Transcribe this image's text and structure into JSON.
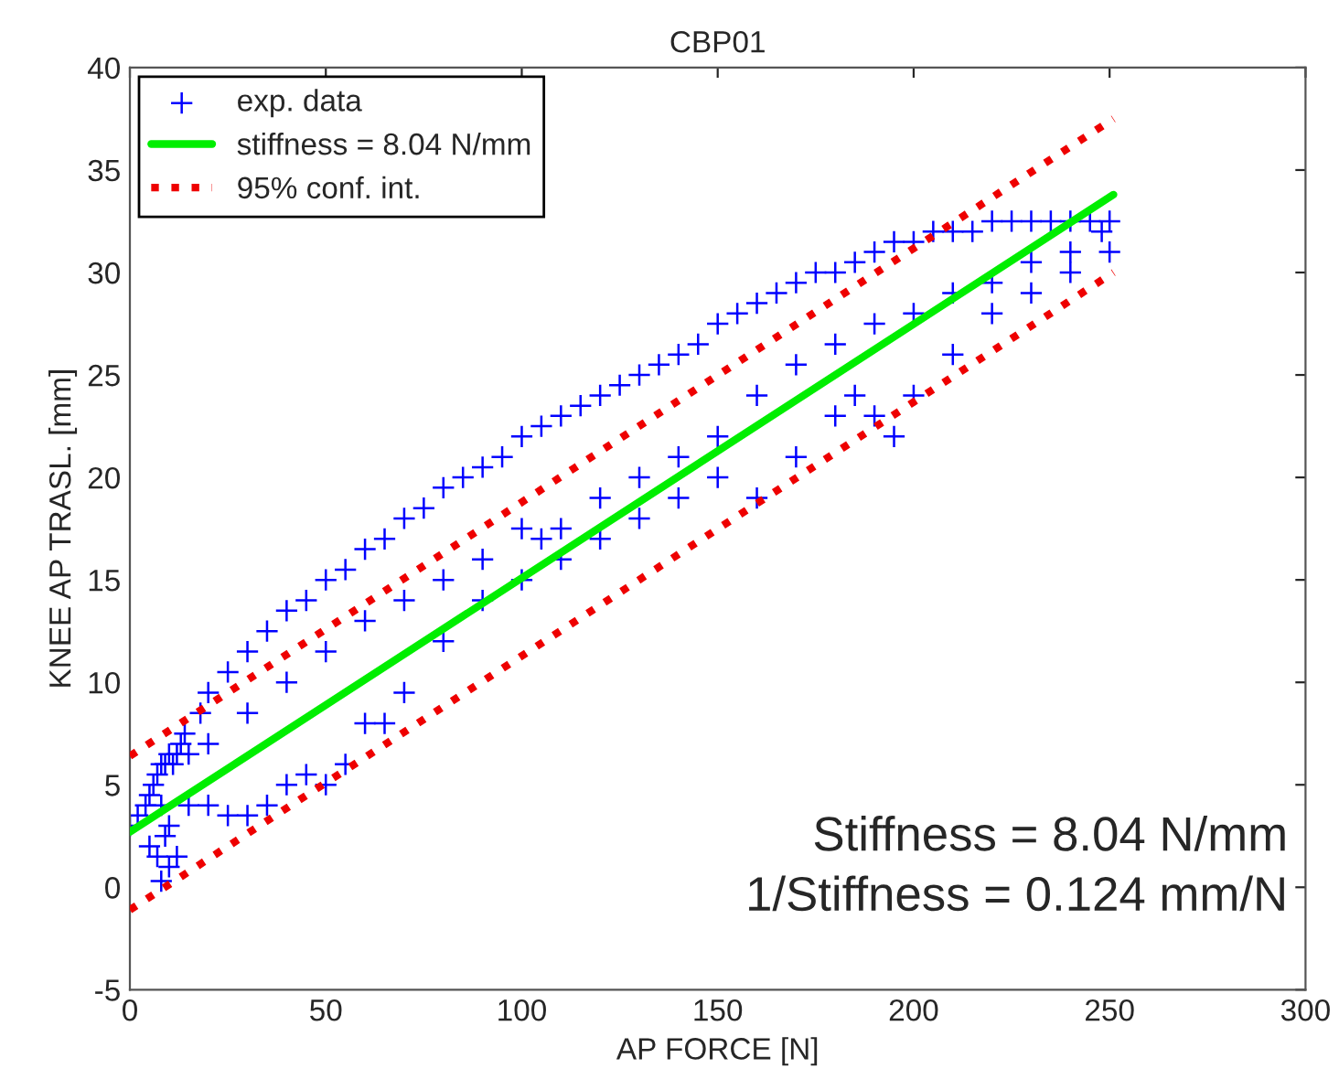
{
  "chart_data": {
    "type": "scatter",
    "title": "CBP01",
    "xlabel": "AP FORCE [N]",
    "ylabel": "KNEE AP TRASL. [mm]",
    "xlim": [
      0,
      300
    ],
    "xticks": [
      0,
      50,
      100,
      150,
      200,
      250,
      300
    ],
    "ylim": [
      -5,
      40
    ],
    "yticks": [
      -5,
      0,
      5,
      10,
      15,
      20,
      25,
      30,
      35,
      40
    ],
    "grid": false,
    "legend": "top left",
    "series": [
      {
        "name": "exp. data",
        "marker": "cross",
        "color": "#0000ff",
        "x": [
          0,
          2,
          4,
          5,
          6,
          7,
          8,
          9,
          10,
          11,
          12,
          13,
          15,
          5,
          7,
          8,
          9,
          10,
          12,
          8,
          10,
          14,
          18,
          20,
          25,
          30,
          35,
          40,
          45,
          50,
          55,
          60,
          65,
          70,
          75,
          80,
          85,
          90,
          95,
          100,
          105,
          110,
          115,
          120,
          125,
          130,
          135,
          140,
          145,
          150,
          155,
          160,
          165,
          170,
          175,
          180,
          185,
          190,
          195,
          200,
          205,
          210,
          215,
          220,
          225,
          230,
          235,
          240,
          245,
          250,
          20,
          30,
          40,
          50,
          60,
          70,
          80,
          90,
          100,
          105,
          110,
          120,
          130,
          140,
          150,
          160,
          170,
          180,
          190,
          200,
          210,
          220,
          230,
          240,
          248,
          15,
          20,
          25,
          30,
          35,
          40,
          45,
          50,
          55,
          60,
          65,
          70,
          80,
          90,
          100,
          110,
          120,
          130,
          140,
          150,
          160,
          170,
          180,
          185,
          190,
          195,
          200,
          210,
          220,
          230,
          240,
          250
        ],
        "values": [
          3,
          3.5,
          4,
          4.5,
          5,
          5.5,
          6,
          6,
          6.5,
          6,
          6.5,
          7,
          6.5,
          2,
          1.5,
          0.3,
          2.5,
          1,
          1.5,
          4,
          3,
          7.5,
          8.5,
          9.5,
          10.5,
          11.5,
          12.5,
          13.5,
          14,
          15,
          15.5,
          16.5,
          17,
          18,
          18.5,
          19.5,
          20,
          20.5,
          21,
          22,
          22.5,
          23,
          23.5,
          24,
          24.5,
          25,
          25.5,
          26,
          26.5,
          27.5,
          28,
          28.5,
          29,
          29.5,
          30,
          30,
          30.5,
          31,
          31.5,
          31.5,
          32,
          32,
          32,
          32.5,
          32.5,
          32.5,
          32.5,
          32.5,
          32.5,
          32.5,
          7,
          8.5,
          10,
          11.5,
          13,
          14,
          15,
          16,
          17.5,
          17,
          17.5,
          19,
          20,
          21,
          22,
          24,
          25.5,
          26.5,
          27.5,
          28,
          29,
          29.5,
          30.5,
          31,
          32,
          4,
          4,
          3.5,
          3.5,
          4,
          5,
          5.5,
          5,
          6,
          8,
          8,
          9.5,
          12,
          14,
          15,
          16,
          17,
          18,
          19,
          20,
          19,
          21,
          23,
          24,
          23,
          22,
          24,
          26,
          28,
          29,
          30,
          31
        ]
      },
      {
        "name": "stiffness = 8.04 N/mm",
        "type": "line",
        "line_style": "solid",
        "color": "#00ee00",
        "x": [
          0,
          251
        ],
        "values": [
          2.7,
          33.8
        ]
      },
      {
        "name": "95% conf. int.",
        "type": "line",
        "line_style": "dotted",
        "color": "#ee0000",
        "x": [
          0,
          251
        ],
        "values": [
          6.4,
          37.5
        ]
      },
      {
        "type": "line",
        "line_style": "dotted",
        "color": "#ee0000",
        "x": [
          0,
          251
        ],
        "values": [
          -1.1,
          30.0
        ]
      }
    ],
    "annotations": [
      "Stiffness = 8.04 N/mm",
      "1/Stiffness = 0.124 mm/N"
    ]
  }
}
